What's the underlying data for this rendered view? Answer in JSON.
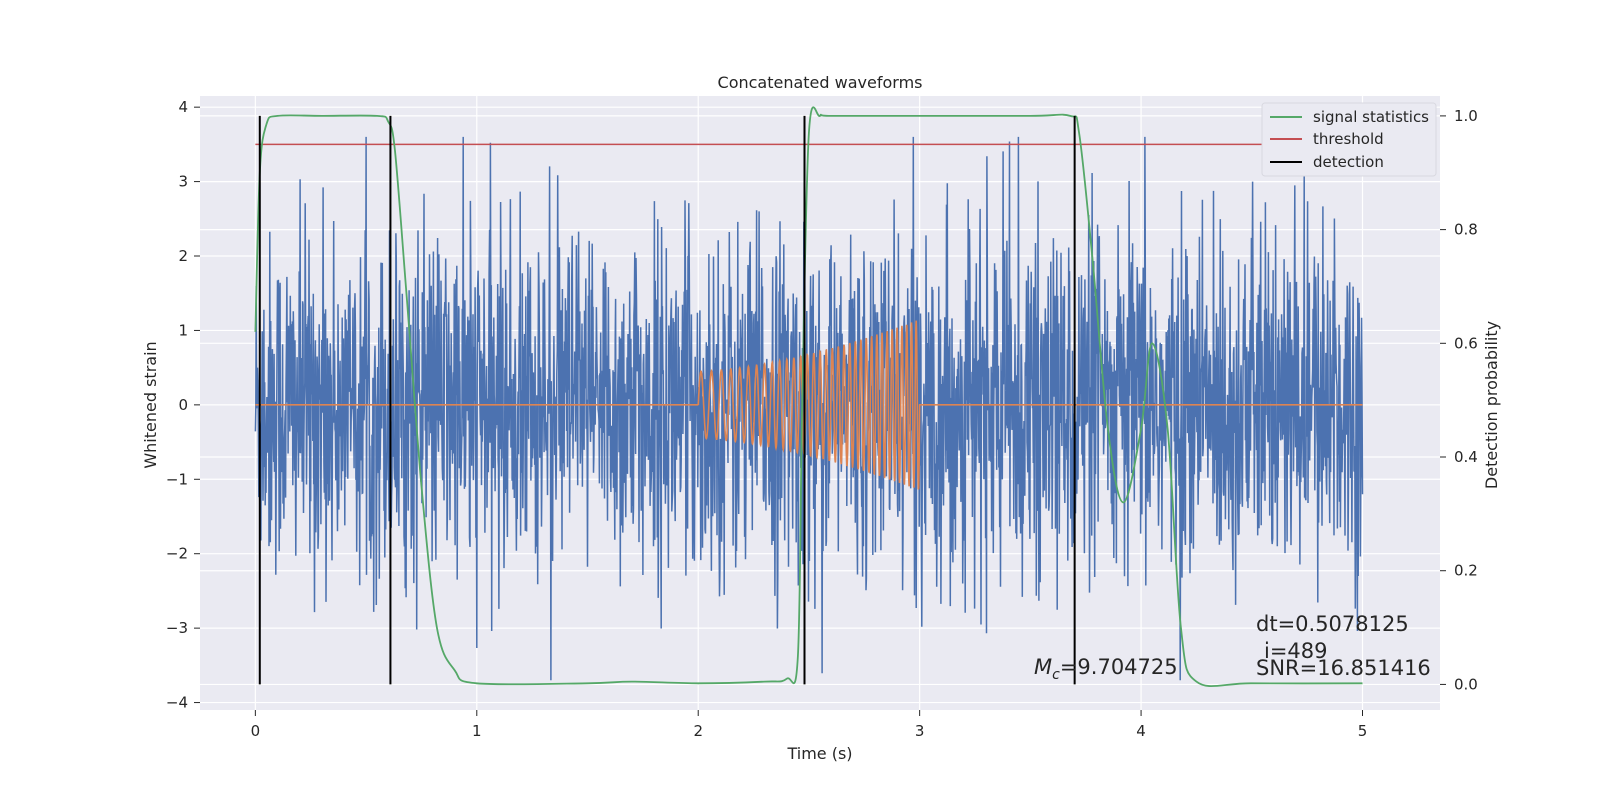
{
  "chart_data": {
    "type": "line",
    "title": "Concatenated waveforms",
    "xlabel": "Time (s)",
    "ylabel": "Whitened strain",
    "ylabel_right": "Detection probability",
    "xlim": [
      -0.25,
      5.35
    ],
    "ylim": [
      -4.1,
      4.15
    ],
    "ylim_right": [
      -0.045,
      1.035
    ],
    "x_ticks": [
      0,
      1,
      2,
      3,
      4,
      5
    ],
    "y_ticks": [
      -4,
      -3,
      -2,
      -1,
      0,
      1,
      2,
      3,
      4
    ],
    "y_ticks_right": [
      0.0,
      0.2,
      0.4,
      0.6,
      0.8,
      1.0
    ],
    "x_tick_labels": [
      "0",
      "1",
      "2",
      "3",
      "4",
      "5"
    ],
    "y_tick_labels": [
      "−4",
      "−3",
      "−2",
      "−1",
      "0",
      "1",
      "2",
      "3",
      "4"
    ],
    "y_tick_labels_right": [
      "0.0",
      "0.2",
      "0.4",
      "0.6",
      "0.8",
      "1.0"
    ],
    "grid": true,
    "legend_position": "top-right",
    "colors": {
      "strain": "#4c72b0",
      "template": "#dd8452",
      "signal": "#55a868",
      "threshold": "#c44e52",
      "detection": "#000000",
      "background": "#eaeaf2",
      "grid": "#ffffff"
    },
    "series": [
      {
        "name": "whitened strain",
        "axis": "left",
        "x_range": [
          0.0,
          5.0
        ],
        "noise_level": 1.35,
        "peak_min": -3.7,
        "peak_max": 3.6
      },
      {
        "name": "chirp template",
        "axis": "left",
        "x_range": [
          0.0,
          5.0
        ],
        "chirp_start": 2.0,
        "chirp_end": 3.0,
        "amp_start": 0.45,
        "amp_end": 1.15
      },
      {
        "name": "signal statistics",
        "axis": "right",
        "x": [
          0.0,
          0.02,
          0.05,
          0.1,
          0.3,
          0.55,
          0.6,
          0.63,
          0.68,
          0.75,
          0.82,
          0.9,
          1.0,
          1.5,
          1.7,
          2.0,
          2.3,
          2.4,
          2.45,
          2.47,
          2.5,
          2.55,
          2.6,
          3.0,
          3.5,
          3.68,
          3.72,
          3.78,
          3.85,
          3.92,
          4.0,
          4.05,
          4.12,
          4.18,
          4.25,
          4.5,
          5.0
        ],
        "y": [
          0.62,
          0.9,
          0.985,
          1.0,
          1.0,
          1.0,
          0.99,
          0.94,
          0.7,
          0.35,
          0.1,
          0.025,
          0.002,
          0.002,
          0.005,
          0.002,
          0.005,
          0.01,
          0.05,
          0.5,
          0.97,
          1.0,
          1.0,
          1.0,
          1.0,
          1.0,
          0.97,
          0.75,
          0.45,
          0.32,
          0.45,
          0.6,
          0.45,
          0.1,
          0.005,
          0.002,
          0.002
        ]
      },
      {
        "name": "threshold",
        "axis": "right",
        "x": [
          0.0,
          5.0
        ],
        "y": [
          0.95,
          0.95
        ]
      }
    ],
    "detections": [
      0.02,
      0.61,
      2.48,
      3.7
    ],
    "legend": [
      "signal statistics",
      "threshold",
      "detection"
    ],
    "annotations": {
      "mc": "=9.704725",
      "mc_label": "M",
      "mc_sub": "c",
      "dt": "dt=0.5078125",
      "i": "i=489",
      "snr": "SNR=16.851416"
    }
  }
}
